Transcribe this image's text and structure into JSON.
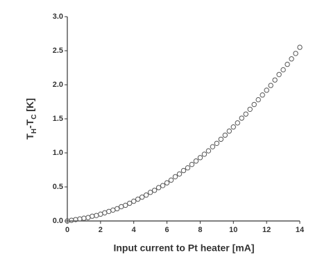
{
  "chart_data": {
    "type": "scatter",
    "x_label": "Input current to Pt heater [mA]",
    "y_label": [
      "T",
      "H",
      "-T",
      "C",
      " [K]"
    ],
    "x": [
      0,
      0.25,
      0.5,
      0.75,
      1,
      1.25,
      1.5,
      1.75,
      2,
      2.25,
      2.5,
      2.75,
      3,
      3.25,
      3.5,
      3.75,
      4,
      4.25,
      4.5,
      4.75,
      5,
      5.25,
      5.5,
      5.75,
      6,
      6.25,
      6.5,
      6.75,
      7,
      7.25,
      7.5,
      7.75,
      8,
      8.25,
      8.5,
      8.75,
      9,
      9.25,
      9.5,
      9.75,
      10,
      10.25,
      10.5,
      10.75,
      11,
      11.25,
      11.5,
      11.75,
      12,
      12.25,
      12.5,
      12.75,
      13,
      13.25,
      13.5,
      13.75,
      14
    ],
    "values": [
      0,
      0.01,
      0.02,
      0.03,
      0.04,
      0.05,
      0.07,
      0.08,
      0.1,
      0.12,
      0.14,
      0.16,
      0.18,
      0.21,
      0.23,
      0.26,
      0.29,
      0.32,
      0.35,
      0.38,
      0.42,
      0.45,
      0.49,
      0.52,
      0.56,
      0.6,
      0.65,
      0.69,
      0.74,
      0.78,
      0.83,
      0.88,
      0.93,
      0.98,
      1.03,
      1.09,
      1.14,
      1.2,
      1.26,
      1.32,
      1.38,
      1.44,
      1.51,
      1.57,
      1.64,
      1.71,
      1.78,
      1.85,
      1.92,
      1.99,
      2.07,
      2.15,
      2.22,
      2.3,
      2.38,
      2.46,
      2.55
    ],
    "color": "#555555",
    "xlim": [
      0,
      14
    ],
    "xticks": [
      0,
      2,
      4,
      6,
      8,
      10,
      12,
      14
    ],
    "ylim": [
      0,
      3
    ],
    "yticks": [
      {
        "value": 0,
        "label": "0.0"
      },
      0.5,
      {
        "value": 1,
        "label": "1.0"
      },
      1.5,
      {
        "value": 2,
        "label": "2.0"
      },
      2.5,
      {
        "value": 3,
        "label": "3.0"
      }
    ]
  }
}
